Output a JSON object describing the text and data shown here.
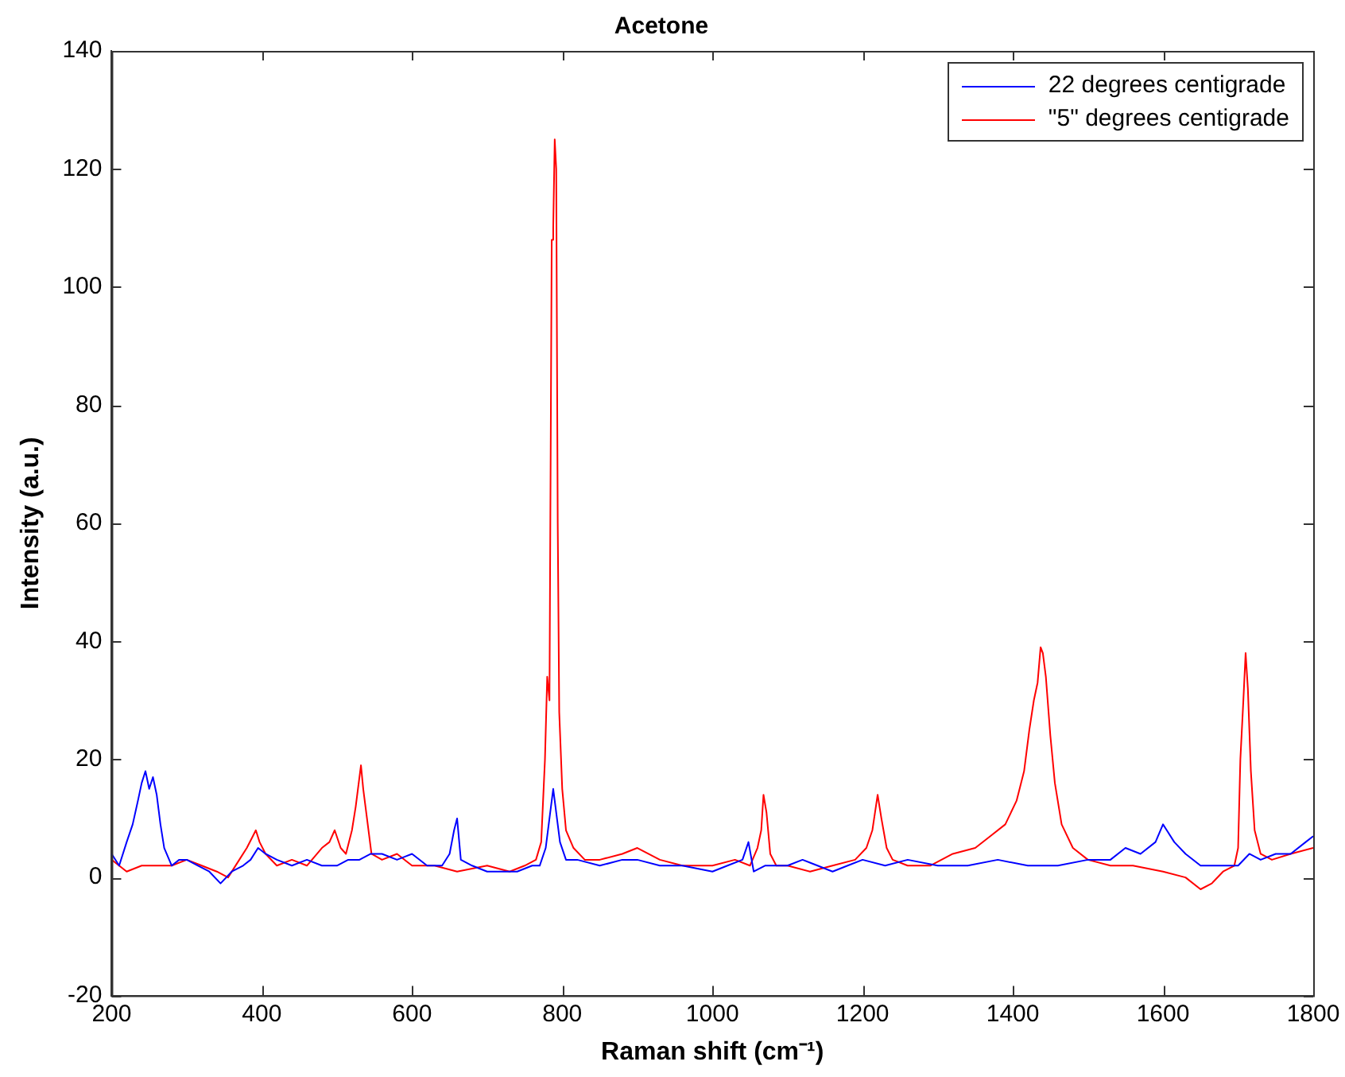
{
  "chart_data": {
    "type": "line",
    "title": "Acetone",
    "xlabel": "Raman shift (cm⁻¹)",
    "ylabel": "Intensity (a.u.)",
    "xlim": [
      200,
      1800
    ],
    "xticks": [
      200,
      400,
      600,
      800,
      1000,
      1200,
      1400,
      1600,
      1800
    ],
    "ylim": [
      -20,
      140
    ],
    "yticks": [
      -20,
      0,
      20,
      40,
      60,
      80,
      100,
      120,
      140
    ],
    "grid": false,
    "legend": "top right",
    "marker": "none",
    "line_style": "solid",
    "series": [
      {
        "name": "22 degrees centigrade",
        "color": "#0000ff",
        "x": [
          200,
          210,
          220,
          228,
          235,
          240,
          245,
          250,
          255,
          260,
          265,
          270,
          280,
          290,
          300,
          315,
          330,
          345,
          360,
          375,
          385,
          395,
          405,
          420,
          440,
          460,
          480,
          500,
          515,
          530,
          545,
          560,
          580,
          600,
          620,
          640,
          650,
          656,
          660,
          665,
          680,
          700,
          720,
          740,
          760,
          770,
          778,
          783,
          788,
          792,
          797,
          805,
          820,
          850,
          880,
          900,
          930,
          960,
          1000,
          1020,
          1040,
          1048,
          1055,
          1070,
          1100,
          1120,
          1140,
          1160,
          1180,
          1200,
          1230,
          1260,
          1300,
          1340,
          1380,
          1420,
          1460,
          1500,
          1530,
          1550,
          1570,
          1590,
          1600,
          1605,
          1615,
          1630,
          1650,
          1680,
          1700,
          1715,
          1730,
          1750,
          1770,
          1790,
          1800
        ],
        "values": [
          4,
          2,
          6,
          9,
          13,
          16,
          18,
          15,
          17,
          14,
          9,
          5,
          2,
          3,
          3,
          2,
          1,
          -1,
          1,
          2,
          3,
          5,
          4,
          3,
          2,
          3,
          2,
          2,
          3,
          3,
          4,
          4,
          3,
          4,
          2,
          2,
          4,
          8,
          10,
          3,
          2,
          1,
          1,
          1,
          2,
          2,
          5,
          10,
          15,
          11,
          6,
          3,
          3,
          2,
          3,
          3,
          2,
          2,
          1,
          2,
          3,
          6,
          1,
          2,
          2,
          3,
          2,
          1,
          2,
          3,
          2,
          3,
          2,
          2,
          3,
          2,
          2,
          3,
          3,
          5,
          4,
          6,
          9,
          8,
          6,
          4,
          2,
          2,
          2,
          4,
          3,
          4,
          4,
          6,
          7
        ]
      },
      {
        "name": "\"5\" degrees centigrade",
        "color": "#ff0000",
        "x": [
          200,
          220,
          240,
          260,
          280,
          300,
          320,
          340,
          355,
          370,
          380,
          388,
          392,
          397,
          405,
          420,
          440,
          460,
          480,
          490,
          497,
          505,
          512,
          520,
          525,
          530,
          532,
          535,
          540,
          546,
          560,
          580,
          600,
          630,
          660,
          700,
          730,
          750,
          765,
          772,
          777,
          780,
          783,
          786,
          788,
          790,
          792,
          794,
          796,
          800,
          805,
          815,
          830,
          850,
          880,
          900,
          930,
          960,
          1000,
          1030,
          1050,
          1060,
          1065,
          1068,
          1072,
          1077,
          1085,
          1100,
          1130,
          1160,
          1190,
          1205,
          1213,
          1220,
          1225,
          1232,
          1240,
          1260,
          1290,
          1320,
          1350,
          1370,
          1390,
          1405,
          1415,
          1422,
          1428,
          1433,
          1437,
          1440,
          1444,
          1450,
          1456,
          1465,
          1480,
          1500,
          1530,
          1560,
          1600,
          1630,
          1650,
          1665,
          1680,
          1695,
          1700,
          1703,
          1707,
          1710,
          1713,
          1717,
          1722,
          1730,
          1745,
          1770,
          1800
        ],
        "values": [
          3,
          1,
          2,
          2,
          2,
          3,
          2,
          1,
          0,
          3,
          5,
          7,
          8,
          6,
          4,
          2,
          3,
          2,
          5,
          6,
          8,
          5,
          4,
          8,
          12,
          17,
          19,
          15,
          10,
          4,
          3,
          4,
          2,
          2,
          1,
          2,
          1,
          2,
          3,
          6,
          20,
          34,
          30,
          108,
          110,
          125,
          120,
          60,
          28,
          15,
          8,
          5,
          3,
          3,
          4,
          5,
          3,
          2,
          2,
          3,
          2,
          5,
          8,
          14,
          11,
          4,
          2,
          2,
          1,
          2,
          3,
          5,
          8,
          14,
          10,
          5,
          3,
          2,
          2,
          4,
          5,
          7,
          9,
          13,
          18,
          25,
          30,
          33,
          39,
          38,
          34,
          24,
          16,
          9,
          5,
          3,
          2,
          2,
          1,
          0,
          -2,
          -1,
          1,
          2,
          5,
          20,
          30,
          38,
          32,
          18,
          8,
          4,
          3,
          4,
          5
        ]
      }
    ]
  }
}
